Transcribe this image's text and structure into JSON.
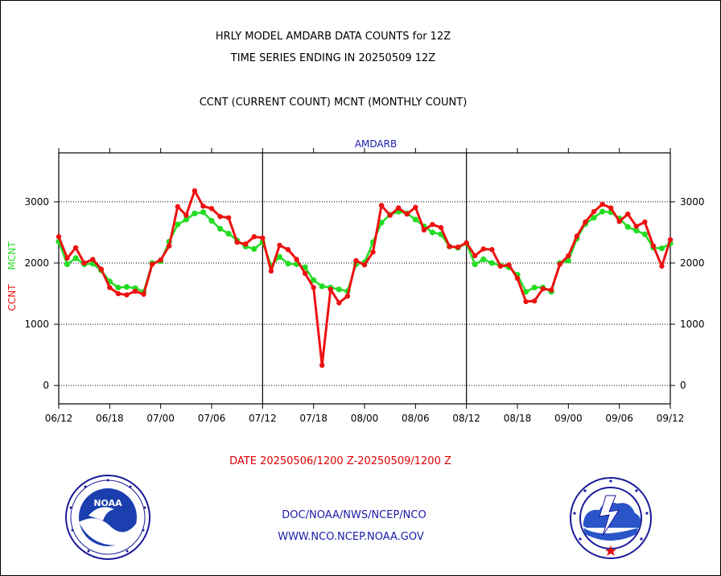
{
  "header": {
    "line1": "HRLY MODEL AMDARB DATA COUNTS for 12Z",
    "line2": "TIME SERIES ENDING IN 20250509 12Z",
    "line3": "CCNT (CURRENT COUNT) MCNT (MONTHLY COUNT)"
  },
  "footer": {
    "date_range": "DATE 20250506/1200 Z-20250509/1200 Z",
    "org": "DOC/NOAA/NWS/NCEP/NCO",
    "url": "WWW.NCO.NCEP.NOAA.GOV"
  },
  "logos": {
    "left": {
      "name": "noaa-logo",
      "text": "NOAA"
    },
    "right": {
      "name": "nws-logo"
    }
  },
  "colors": {
    "ccnt": "#ee1111",
    "mcnt": "#22dd22",
    "date_text": "#dd0000",
    "footer_text": "#1a1aa8",
    "title_blue": "#1a1aa8"
  },
  "chart_data": {
    "type": "line",
    "title": "AMDARB",
    "ylabel_ccnt": "CCNT",
    "ylabel_mcnt": "MCNT",
    "ylim": [
      -300,
      3800
    ],
    "yticks": [
      0,
      1000,
      2000,
      3000
    ],
    "ytick_labels": [
      "0",
      "1000",
      "2000",
      "3000"
    ],
    "x_range": [
      0,
      72
    ],
    "xticks": [
      0,
      6,
      12,
      18,
      24,
      30,
      36,
      42,
      48,
      54,
      60,
      66,
      72
    ],
    "xtick_labels": [
      "06/12",
      "06/18",
      "07/00",
      "07/06",
      "07/12",
      "07/18",
      "08/00",
      "08/06",
      "08/12",
      "08/18",
      "09/00",
      "09/06",
      "09/12"
    ],
    "day_separators": [
      24,
      48
    ],
    "grid": "horizontal-dotted",
    "series": [
      {
        "name": "CCNT",
        "color": "#ee1111",
        "values": [
          2430,
          2080,
          2250,
          2000,
          2060,
          1900,
          1600,
          1500,
          1480,
          1540,
          1490,
          1980,
          2050,
          2280,
          2920,
          2780,
          3180,
          2930,
          2890,
          2760,
          2740,
          2340,
          2310,
          2430,
          2410,
          1870,
          2290,
          2220,
          2060,
          1830,
          1600,
          330,
          1570,
          1350,
          1460,
          2040,
          1970,
          2180,
          2940,
          2780,
          2900,
          2800,
          2910,
          2540,
          2630,
          2580,
          2270,
          2260,
          2330,
          2120,
          2230,
          2220,
          1950,
          1970,
          1750,
          1370,
          1380,
          1580,
          1560,
          1980,
          2120,
          2440,
          2670,
          2840,
          2960,
          2900,
          2680,
          2800,
          2600,
          2670,
          2280,
          1950,
          2380
        ]
      },
      {
        "name": "MCNT",
        "color": "#22dd22",
        "values": [
          2350,
          1980,
          2080,
          1980,
          1990,
          1880,
          1700,
          1600,
          1610,
          1590,
          1530,
          2000,
          2030,
          2350,
          2630,
          2710,
          2810,
          2830,
          2690,
          2560,
          2480,
          2370,
          2270,
          2230,
          2340,
          1960,
          2100,
          1990,
          1980,
          1930,
          1720,
          1620,
          1600,
          1570,
          1540,
          1980,
          2010,
          2340,
          2660,
          2790,
          2840,
          2810,
          2710,
          2600,
          2500,
          2470,
          2270,
          2250,
          2320,
          1980,
          2060,
          2000,
          1960,
          1930,
          1810,
          1530,
          1600,
          1600,
          1530,
          2000,
          2040,
          2400,
          2640,
          2740,
          2840,
          2830,
          2730,
          2590,
          2530,
          2470,
          2250,
          2240,
          2320
        ]
      }
    ]
  }
}
